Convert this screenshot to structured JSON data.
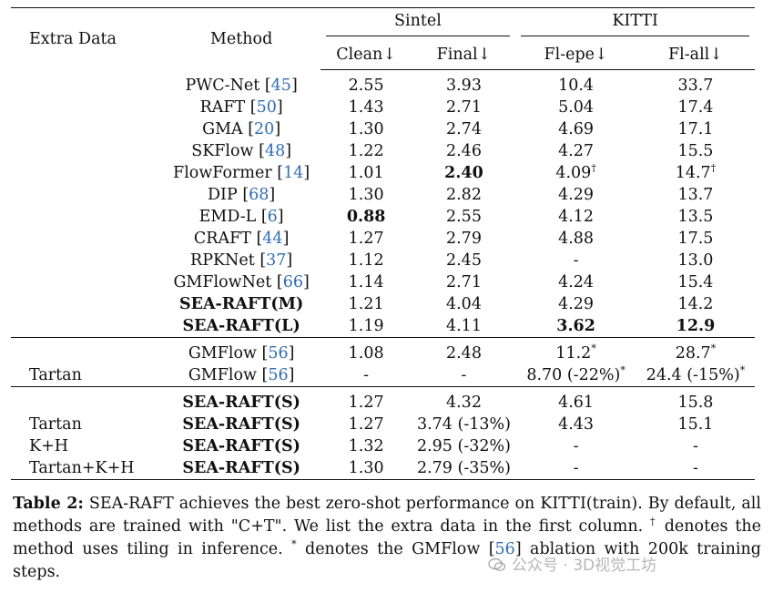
{
  "table": {
    "headers": {
      "extra_data": "Extra Data",
      "method": "Method",
      "group_sintel": "Sintel",
      "group_kitti": "KITTI",
      "clean": "Clean↓",
      "final": "Final↓",
      "fl_epe": "Fl-epe↓",
      "fl_all": "Fl-all↓"
    },
    "section1": [
      {
        "extra": "",
        "method": "PWC-Net ",
        "cite": "45",
        "clean": "2.55",
        "final": "3.93",
        "fl_epe": "10.4",
        "fl_all": "33.7"
      },
      {
        "extra": "",
        "method": "RAFT ",
        "cite": "50",
        "clean": "1.43",
        "final": "2.71",
        "fl_epe": "5.04",
        "fl_all": "17.4"
      },
      {
        "extra": "",
        "method": "GMA ",
        "cite": "20",
        "clean": "1.30",
        "final": "2.74",
        "fl_epe": "4.69",
        "fl_all": "17.1"
      },
      {
        "extra": "",
        "method": "SKFlow ",
        "cite": "48",
        "clean": "1.22",
        "final": "2.46",
        "fl_epe": "4.27",
        "fl_all": "15.5"
      },
      {
        "extra": "",
        "method": "FlowFormer ",
        "cite": "14",
        "clean": "1.01",
        "final": "2.40",
        "fl_epe": "4.09",
        "fl_epe_sup": "†",
        "fl_all": "14.7",
        "fl_all_sup": "†"
      },
      {
        "extra": "",
        "method": "DIP ",
        "cite": "68",
        "clean": "1.30",
        "final": "2.82",
        "fl_epe": "4.29",
        "fl_all": "13.7"
      },
      {
        "extra": "",
        "method": "EMD-L ",
        "cite": "6",
        "clean": "0.88",
        "final": "2.55",
        "fl_epe": "4.12",
        "fl_all": "13.5"
      },
      {
        "extra": "",
        "method": "CRAFT ",
        "cite": "44",
        "clean": "1.27",
        "final": "2.79",
        "fl_epe": "4.88",
        "fl_all": "17.5"
      },
      {
        "extra": "",
        "method": "RPKNet ",
        "cite": "37",
        "clean": "1.12",
        "final": "2.45",
        "fl_epe": "-",
        "fl_all": "13.0"
      },
      {
        "extra": "",
        "method": "GMFlowNet ",
        "cite": "66",
        "clean": "1.14",
        "final": "2.71",
        "fl_epe": "4.24",
        "fl_all": "15.4"
      },
      {
        "extra": "",
        "method": "SEA-RAFT(M)",
        "cite": "",
        "clean": "1.21",
        "final": "4.04",
        "fl_epe": "4.29",
        "fl_all": "14.2"
      },
      {
        "extra": "",
        "method": "SEA-RAFT(L)",
        "cite": "",
        "clean": "1.19",
        "final": "4.11",
        "fl_epe": "3.62",
        "fl_all": "12.9"
      }
    ],
    "section2": [
      {
        "extra": "",
        "method": "GMFlow ",
        "cite": "56",
        "clean": "1.08",
        "final": "2.48",
        "fl_epe": "11.2",
        "fl_epe_sup": "*",
        "fl_all": "28.7",
        "fl_all_sup": "*"
      },
      {
        "extra": "Tartan",
        "method": "GMFlow ",
        "cite": "56",
        "clean": "-",
        "final": "-",
        "fl_epe": "8.70 (-22%)",
        "fl_epe_sup": "*",
        "fl_all": "24.4 (-15%)",
        "fl_all_sup": "*"
      }
    ],
    "section3": [
      {
        "extra": "",
        "method": "SEA-RAFT(S)",
        "clean": "1.27",
        "final": "4.32",
        "fl_epe": "4.61",
        "fl_all": "15.8"
      },
      {
        "extra": "Tartan",
        "method": "SEA-RAFT(S)",
        "clean": "1.27",
        "final": "3.74 (-13%)",
        "fl_epe": "4.43",
        "fl_all": "15.1"
      },
      {
        "extra": "K+H",
        "method": "SEA-RAFT(S)",
        "clean": "1.32",
        "final": "2.95 (-32%)",
        "fl_epe": "-",
        "fl_all": "-"
      },
      {
        "extra": "Tartan+K+H",
        "method": "SEA-RAFT(S)",
        "clean": "1.30",
        "final": "2.79 (-35%)",
        "fl_epe": "-",
        "fl_all": "-"
      }
    ],
    "bracket_open": "[",
    "bracket_close": "]"
  },
  "caption": {
    "label": "Table 2:",
    "text1": " SEA-RAFT achieves the best zero-shot performance on KITTI(train). By default, all methods are trained with \"C+T\". We list the extra data in the first column. ",
    "dagger": "†",
    "text2": " denotes the method uses tiling in inference. ",
    "star": "*",
    "text3": " denotes the GMFlow ",
    "cite": "56",
    "text4": " ablation with 200k training steps."
  },
  "watermark": {
    "text": "公众号 · 3D视觉工坊"
  }
}
